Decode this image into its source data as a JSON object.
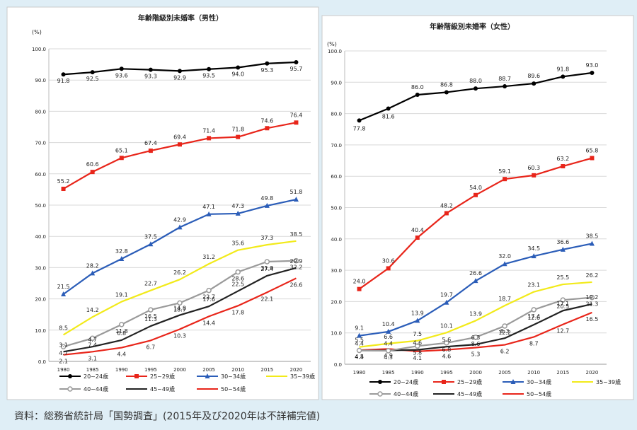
{
  "source_note": "資料：総務省統計局「国勢調査」(2015年及び2020年は不詳補完値)",
  "chart_data": [
    {
      "type": "line",
      "title": "年齢階級別未婚率（男性）",
      "ylabel": "(%)",
      "ylim": [
        0,
        100
      ],
      "y_ticks": [
        "0.0",
        "10.0",
        "20.0",
        "30.0",
        "40.0",
        "50.0",
        "60.0",
        "70.0",
        "80.0",
        "90.0",
        "100.0"
      ],
      "x": [
        "1980",
        "1985",
        "1990",
        "1995",
        "2000",
        "2005",
        "2010",
        "2015",
        "2020"
      ],
      "legend_position": "bottom",
      "grid": true,
      "series": [
        {
          "name": "20~24歳",
          "color": "#000000",
          "marker": "circle",
          "values": [
            91.8,
            92.5,
            93.6,
            93.3,
            92.9,
            93.5,
            94.0,
            95.3,
            95.7
          ]
        },
        {
          "name": "25~29歳",
          "color": "#e8251a",
          "marker": "square",
          "values": [
            55.2,
            60.6,
            65.1,
            67.4,
            69.4,
            71.4,
            71.8,
            74.6,
            76.4
          ]
        },
        {
          "name": "30~34歳",
          "color": "#2b5db8",
          "marker": "triangle",
          "values": [
            21.5,
            28.2,
            32.8,
            37.5,
            42.9,
            47.1,
            47.3,
            49.8,
            51.8
          ]
        },
        {
          "name": "35~39歳",
          "color": "#f2ea1a",
          "marker": "none",
          "values": [
            8.5,
            14.2,
            19.1,
            22.7,
            26.2,
            31.2,
            35.6,
            37.3,
            38.5
          ]
        },
        {
          "name": "40~44歳",
          "color": "#9a9a9a",
          "marker": "hollow-circle",
          "values": [
            4.7,
            7.4,
            11.8,
            16.5,
            18.7,
            22.7,
            28.6,
            31.9,
            32.2
          ]
        },
        {
          "name": "45~49歳",
          "color": "#222222",
          "marker": "none",
          "values": [
            3.1,
            4.7,
            6.8,
            11.3,
            14.8,
            17.6,
            22.5,
            27.4,
            29.9
          ]
        },
        {
          "name": "50~54歳",
          "color": "#e8251a",
          "marker": "none",
          "values": [
            2.1,
            3.1,
            4.4,
            6.7,
            10.3,
            14.4,
            17.8,
            22.1,
            26.6
          ]
        }
      ]
    },
    {
      "type": "line",
      "title": "年齢階級別未婚率（女性）",
      "ylabel": "(%)",
      "ylim": [
        0,
        100
      ],
      "y_ticks": [
        "0.0",
        "10.0",
        "20.0",
        "30.0",
        "40.0",
        "50.0",
        "60.0",
        "70.0",
        "80.0",
        "90.0",
        "100.0"
      ],
      "x": [
        "1980",
        "1985",
        "1990",
        "1995",
        "2000",
        "2005",
        "2010",
        "2015",
        "2020"
      ],
      "legend_position": "bottom",
      "grid": true,
      "series": [
        {
          "name": "20~24歳",
          "color": "#000000",
          "marker": "circle",
          "values": [
            77.8,
            81.6,
            86.0,
            86.8,
            88.0,
            88.7,
            89.6,
            91.8,
            93.0
          ]
        },
        {
          "name": "25~29歳",
          "color": "#e8251a",
          "marker": "square",
          "values": [
            24.0,
            30.6,
            40.4,
            48.2,
            54.0,
            59.1,
            60.3,
            63.2,
            65.8
          ]
        },
        {
          "name": "30~34歳",
          "color": "#2b5db8",
          "marker": "triangle",
          "values": [
            9.1,
            10.4,
            13.9,
            19.7,
            26.6,
            32.0,
            34.5,
            36.6,
            38.5
          ]
        },
        {
          "name": "35~39歳",
          "color": "#f2ea1a",
          "marker": "none",
          "values": [
            5.5,
            6.6,
            7.5,
            10.1,
            13.9,
            18.7,
            23.1,
            25.5,
            26.2
          ]
        },
        {
          "name": "40~44歳",
          "color": "#9a9a9a",
          "marker": "hollow-circle",
          "values": [
            4.4,
            4.3,
            5.8,
            6.8,
            8.6,
            12.2,
            17.4,
            20.5,
            21.3
          ]
        },
        {
          "name": "45~49歳",
          "color": "#222222",
          "marker": "none",
          "values": [
            4.4,
            4.4,
            4.6,
            5.6,
            6.3,
            8.3,
            12.6,
            17.1,
            19.2
          ]
        },
        {
          "name": "50~54歳",
          "color": "#e8251a",
          "marker": "none",
          "values": [
            4.5,
            4.9,
            4.1,
            4.6,
            5.3,
            6.2,
            8.7,
            12.7,
            16.5
          ]
        }
      ]
    }
  ]
}
